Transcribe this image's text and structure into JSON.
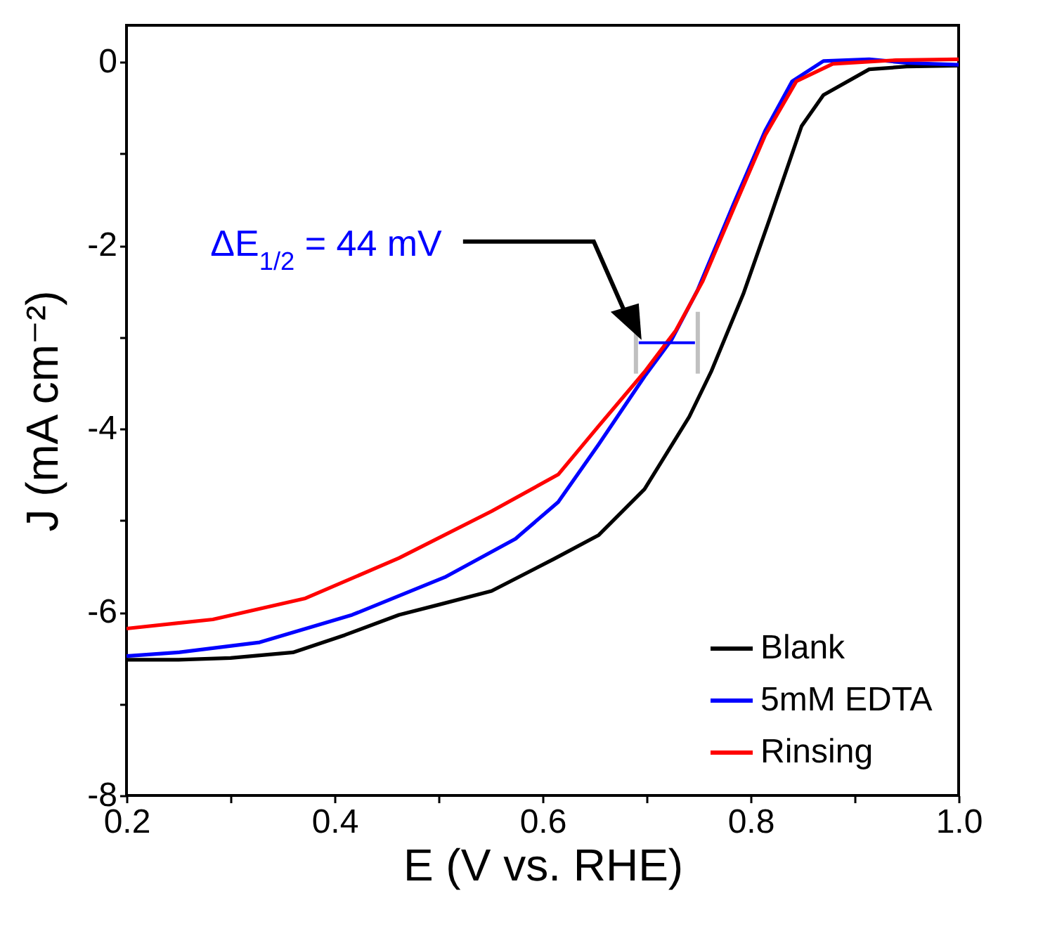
{
  "chart_data": {
    "type": "line",
    "xlabel": "E (V vs. RHE)",
    "ylabel": "J (mA cm⁻²)",
    "xlim": [
      0.2,
      1.0
    ],
    "ylim": [
      -8,
      0.4
    ],
    "xticks": [
      0.2,
      {
        "value": 0.3,
        "label": null
      },
      0.4,
      {
        "value": 0.5,
        "label": null
      },
      0.6,
      {
        "value": 0.7,
        "label": null
      },
      0.8,
      {
        "value": 0.9,
        "label": null
      },
      {
        "value": 1.0,
        "label": "1.0"
      }
    ],
    "yticks": [
      -8,
      {
        "value": -7,
        "label": null
      },
      -6,
      {
        "value": -5,
        "label": null
      },
      -4,
      {
        "value": -3,
        "label": null
      },
      -2,
      {
        "value": -1,
        "label": null
      },
      0
    ],
    "grid": false,
    "legend": "bottom right",
    "line_style": "solid",
    "annotations": [
      "ΔE$_{1/2}$ = 44 mV"
    ],
    "series": [
      {
        "name": "Blank",
        "color": "#000000",
        "x": [
          0.2,
          0.25,
          0.3,
          0.36,
          0.41,
          0.462,
          0.5,
          0.551,
          0.611,
          0.654,
          0.698,
          0.741,
          0.762,
          0.793,
          0.819,
          0.849,
          0.87,
          0.914,
          0.95,
          1.0
        ],
        "values": [
          -6.52,
          -6.52,
          -6.5,
          -6.44,
          -6.25,
          -6.03,
          -5.92,
          -5.77,
          -5.42,
          -5.16,
          -4.66,
          -3.87,
          -3.38,
          -2.53,
          -1.69,
          -0.7,
          -0.36,
          -0.08,
          -0.05,
          -0.04
        ]
      },
      {
        "name": "5mM EDTA",
        "color": "#0000ff",
        "x": [
          0.2,
          0.25,
          0.328,
          0.417,
          0.506,
          0.574,
          0.615,
          0.654,
          0.698,
          0.724,
          0.749,
          0.784,
          0.814,
          0.84,
          0.87,
          0.914,
          0.95,
          1.0
        ],
        "values": [
          -6.48,
          -6.44,
          -6.33,
          -6.03,
          -5.62,
          -5.2,
          -4.8,
          -4.17,
          -3.43,
          -3.03,
          -2.49,
          -1.54,
          -0.75,
          -0.21,
          0.01,
          0.03,
          -0.01,
          -0.03
        ]
      },
      {
        "name": "Rinsing",
        "color": "#ff0000",
        "x": [
          0.2,
          0.283,
          0.372,
          0.462,
          0.551,
          0.615,
          0.654,
          0.698,
          0.728,
          0.754,
          0.784,
          0.814,
          0.844,
          0.879,
          0.94,
          1.0
        ],
        "values": [
          -6.18,
          -6.08,
          -5.85,
          -5.41,
          -4.9,
          -4.5,
          -3.97,
          -3.38,
          -2.93,
          -2.39,
          -1.59,
          -0.8,
          -0.21,
          -0.02,
          0.02,
          0.03
        ]
      }
    ]
  }
}
